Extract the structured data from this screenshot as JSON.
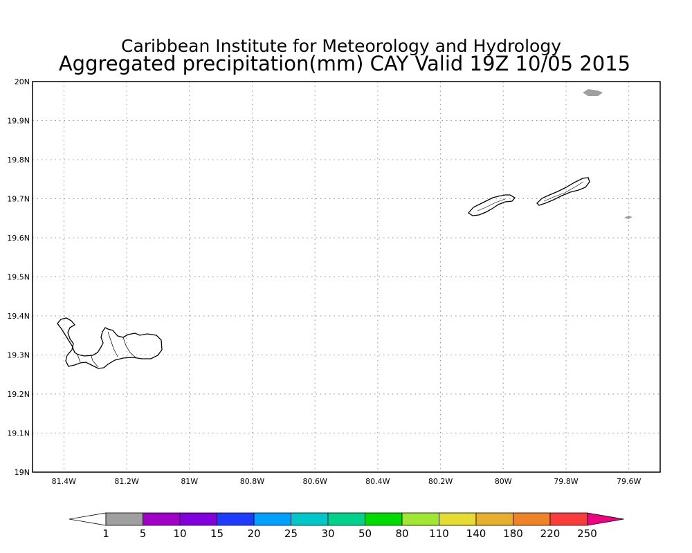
{
  "header": {
    "line1": "Caribbean Institute for Meteorology and Hydrology",
    "line2": "Aggregated precipitation(mm) CAY Valid 19Z 10/05 2015"
  },
  "map": {
    "lon_range": [
      -81.5,
      -79.5
    ],
    "lat_range": [
      19.0,
      20.0
    ],
    "grid": true,
    "lon_ticks": [
      {
        "value": -81.4,
        "label": "81.4W"
      },
      {
        "value": -81.2,
        "label": "81.2W"
      },
      {
        "value": -81.0,
        "label": "81W"
      },
      {
        "value": -80.8,
        "label": "80.8W"
      },
      {
        "value": -80.6,
        "label": "80.6W"
      },
      {
        "value": -80.4,
        "label": "80.4W"
      },
      {
        "value": -80.2,
        "label": "80.2W"
      },
      {
        "value": -80.0,
        "label": "80W"
      },
      {
        "value": -79.8,
        "label": "79.8W"
      },
      {
        "value": -79.6,
        "label": "79.6W"
      }
    ],
    "lat_ticks": [
      {
        "value": 20.0,
        "label": "20N"
      },
      {
        "value": 19.9,
        "label": "19.9N"
      },
      {
        "value": 19.8,
        "label": "19.8N"
      },
      {
        "value": 19.7,
        "label": "19.7N"
      },
      {
        "value": 19.6,
        "label": "19.6N"
      },
      {
        "value": 19.5,
        "label": "19.5N"
      },
      {
        "value": 19.4,
        "label": "19.4N"
      },
      {
        "value": 19.3,
        "label": "19.3N"
      },
      {
        "value": 19.2,
        "label": "19.2N"
      },
      {
        "value": 19.1,
        "label": "19.1N"
      },
      {
        "value": 19.0,
        "label": "19N"
      }
    ]
  },
  "colorbar": {
    "labels": [
      "1",
      "5",
      "10",
      "15",
      "20",
      "25",
      "30",
      "50",
      "80",
      "110",
      "140",
      "180",
      "220",
      "250"
    ],
    "colors": [
      "#a0a0a0",
      "#a000c8",
      "#8200dc",
      "#1e3cff",
      "#00a0ff",
      "#00c8c8",
      "#00d28c",
      "#00dc00",
      "#a0e632",
      "#e6dc32",
      "#e6af2d",
      "#f08228",
      "#fa3c3c",
      "#f00082"
    ],
    "below_color": "#ffffff"
  }
}
